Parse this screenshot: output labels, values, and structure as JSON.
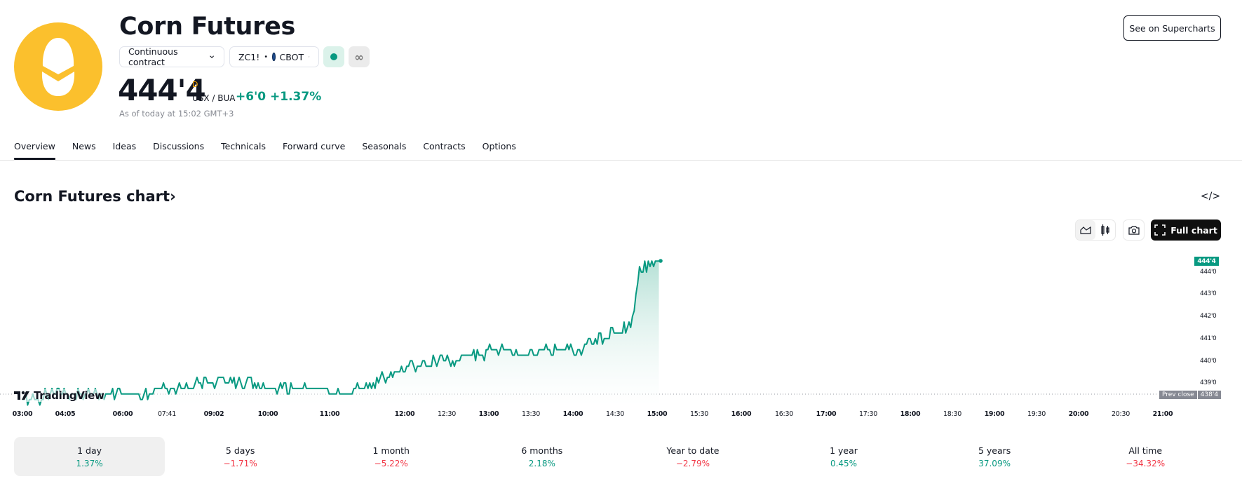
{
  "header": {
    "title": "Corn Futures",
    "contract_selector": "Continuous contract",
    "symbol": "ZC1!",
    "exchange": "CBOT",
    "market_status": "open",
    "delayed_indicator": "∞",
    "price": "444'4",
    "price_flag": "D",
    "currency": "USX / BUA",
    "change": "+6'0",
    "change_percent": "+1.37%",
    "as_of": "As of today at 15:02 GMT+3",
    "see_on_supercharts": "See on Supercharts"
  },
  "tabs": [
    {
      "label": "Overview",
      "active": true
    },
    {
      "label": "News"
    },
    {
      "label": "Ideas"
    },
    {
      "label": "Discussions"
    },
    {
      "label": "Technicals"
    },
    {
      "label": "Forward curve"
    },
    {
      "label": "Seasonals"
    },
    {
      "label": "Contracts"
    },
    {
      "label": "Options"
    }
  ],
  "chart_section": {
    "title": "Corn Futures chart›",
    "full_chart_label": "Full chart",
    "embed_icon": "</>",
    "watermark": "TradingView",
    "last_price_badge": "444'4",
    "prev_close_label": "Prev close",
    "prev_close_value": "438'4",
    "colors": {
      "line": "#089981",
      "area_top": "#b2dfd4",
      "area_bottom": "#ffffff",
      "negative": "#f23645"
    }
  },
  "periods": [
    {
      "label": "1 day",
      "value": "1.37%",
      "sign": "pos",
      "active": true
    },
    {
      "label": "5 days",
      "value": "−1.71%",
      "sign": "neg"
    },
    {
      "label": "1 month",
      "value": "−5.22%",
      "sign": "neg"
    },
    {
      "label": "6 months",
      "value": "2.18%",
      "sign": "pos"
    },
    {
      "label": "Year to date",
      "value": "−2.79%",
      "sign": "neg"
    },
    {
      "label": "1 year",
      "value": "0.45%",
      "sign": "pos"
    },
    {
      "label": "5 years",
      "value": "37.09%",
      "sign": "pos"
    },
    {
      "label": "All time",
      "value": "−34.32%",
      "sign": "neg"
    }
  ],
  "chart_data": {
    "type": "area",
    "title": "Corn Futures chart",
    "xlabel": "",
    "ylabel": "USX / BUA",
    "x_ticks": [
      "03:00",
      "04:05",
      "06:00",
      "07:41",
      "09:02",
      "10:00",
      "11:00",
      "12:00",
      "12:30",
      "13:00",
      "13:30",
      "14:00",
      "14:30",
      "15:00",
      "15:30",
      "16:00",
      "16:30",
      "17:00",
      "17:30",
      "18:00",
      "18:30",
      "19:00",
      "19:30",
      "20:00",
      "20:30",
      "21:00"
    ],
    "x_ticks_bold": [
      "03:00",
      "04:05",
      "06:00",
      "09:02",
      "10:00",
      "11:00",
      "12:00",
      "13:00",
      "14:00",
      "15:00",
      "16:00",
      "17:00",
      "18:00",
      "19:00",
      "20:00",
      "21:00"
    ],
    "y_ticks": [
      "444'0",
      "443'0",
      "442'0",
      "441'0",
      "440'0",
      "439'0"
    ],
    "ylim": [
      438.3,
      444.9
    ],
    "prev_close": 438.5,
    "last": 444.5,
    "series": [
      {
        "name": "ZC1!",
        "x": [
          "03:00",
          "04:05",
          "05:00",
          "06:00",
          "06:30",
          "07:00",
          "07:41",
          "08:30",
          "09:02",
          "09:30",
          "10:00",
          "10:30",
          "11:00",
          "11:30",
          "12:00",
          "12:30",
          "13:00",
          "13:30",
          "14:00",
          "14:15",
          "14:30",
          "14:40",
          "14:50",
          "15:00",
          "15:02"
        ],
        "values": [
          438.3,
          438.5,
          438.5,
          438.75,
          439.0,
          439.0,
          438.75,
          438.75,
          438.5,
          438.75,
          439.5,
          439.75,
          440.0,
          440.25,
          440.5,
          440.25,
          440.5,
          440.5,
          441.0,
          441.25,
          441.5,
          444.0,
          444.25,
          444.5,
          444.5
        ]
      }
    ]
  }
}
